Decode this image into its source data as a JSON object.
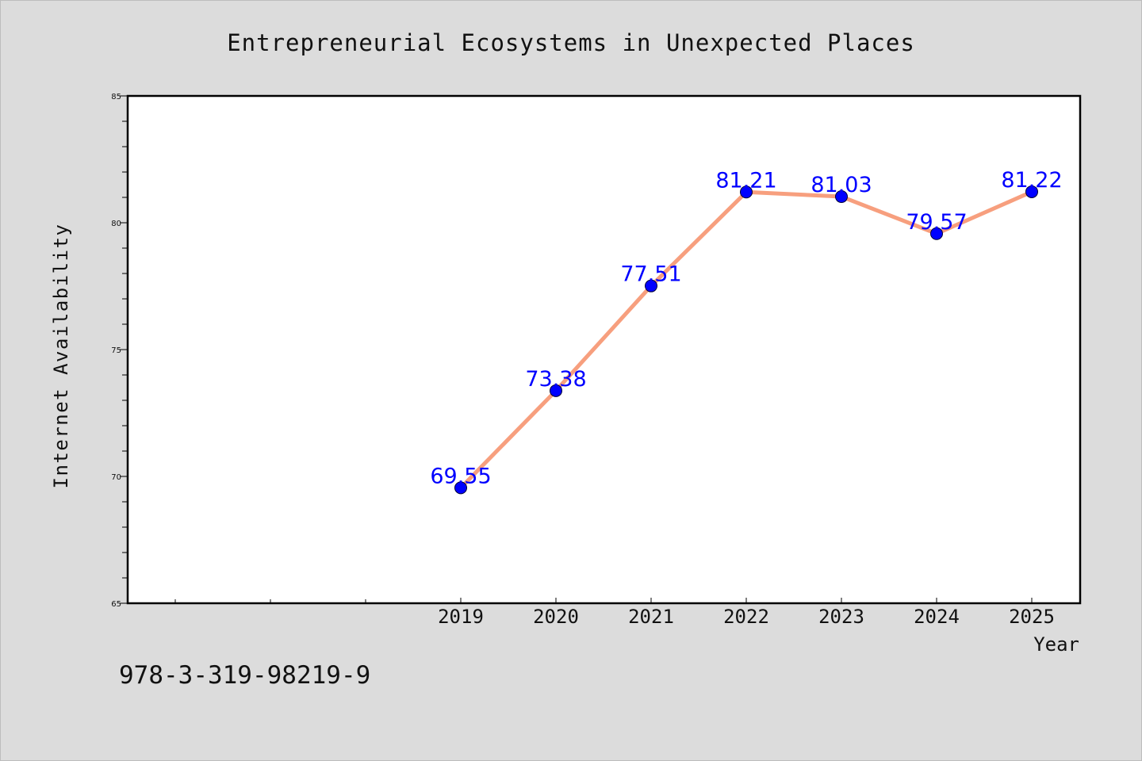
{
  "chart_data": {
    "type": "line",
    "title": "Entrepreneurial Ecosystems in Unexpected Places",
    "xlabel": "Year",
    "ylabel": "Internet Availability",
    "categories": [
      "2019",
      "2020",
      "2021",
      "2022",
      "2023",
      "2024",
      "2025"
    ],
    "series": [
      {
        "values": [
          69.55,
          73.38,
          77.51,
          81.21,
          81.03,
          79.57,
          81.22
        ]
      }
    ],
    "data_labels": [
      "69.55",
      "73.38",
      "77.51",
      "81.21",
      "81.03",
      "79.57",
      "81.22"
    ],
    "ylim": [
      65,
      85
    ],
    "yticks": [
      "65",
      "70",
      "75",
      "80",
      "85"
    ],
    "grid": false,
    "legend": "none",
    "colors": {
      "line": "#f79f7e",
      "marker": "#0000ff",
      "label": "#0000ff",
      "background": "#dcdcdc",
      "plot_background": "#ffffff"
    }
  },
  "footer": {
    "code": "978-3-319-98219-9"
  }
}
